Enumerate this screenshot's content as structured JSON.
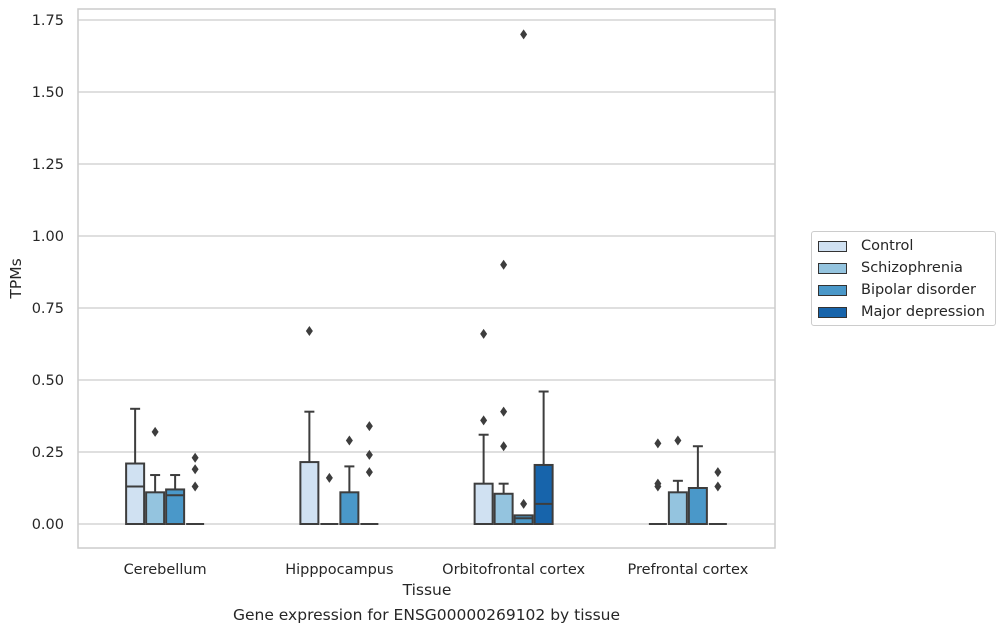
{
  "caption": "Gene expression for ENSG00000269102 by tissue",
  "chart_data": {
    "type": "boxplot",
    "xlabel": "Tissue",
    "ylabel": "TPMs",
    "ylim": [
      -0.08,
      1.79
    ],
    "yticks": [
      "0.00",
      "0.25",
      "0.50",
      "0.75",
      "1.00",
      "1.25",
      "1.50",
      "1.75"
    ],
    "ytick_values": [
      0,
      0.25,
      0.5,
      0.75,
      1.0,
      1.25,
      1.5,
      1.75
    ],
    "grid": "horizontal",
    "legend_position": "right",
    "categories": [
      "Cerebellum",
      "Hipppocampus",
      "Orbitofrontal cortex",
      "Prefrontal cortex"
    ],
    "series": [
      {
        "name": "Control",
        "color": "#d0e1f2",
        "boxes": [
          {
            "q1": 0,
            "median": 0.13,
            "q3": 0.21,
            "whislo": 0,
            "whishi": 0.4,
            "fliers": []
          },
          {
            "q1": 0,
            "median": 0,
            "q3": 0.215,
            "whislo": 0,
            "whishi": 0.39,
            "fliers": [
              0.67
            ]
          },
          {
            "q1": 0,
            "median": 0,
            "q3": 0.14,
            "whislo": 0,
            "whishi": 0.31,
            "fliers": [
              0.36,
              0.66
            ]
          },
          {
            "q1": 0,
            "median": 0,
            "q3": 0,
            "whislo": 0,
            "whishi": 0,
            "fliers": [
              0.13,
              0.14,
              0.28
            ]
          }
        ]
      },
      {
        "name": "Schizophrenia",
        "color": "#94c4df",
        "boxes": [
          {
            "q1": 0,
            "median": 0,
            "q3": 0.11,
            "whislo": 0,
            "whishi": 0.17,
            "fliers": [
              0.32
            ]
          },
          {
            "q1": 0,
            "median": 0,
            "q3": 0,
            "whislo": 0,
            "whishi": 0,
            "fliers": [
              0.16
            ]
          },
          {
            "q1": 0,
            "median": 0,
            "q3": 0.105,
            "whislo": 0,
            "whishi": 0.14,
            "fliers": [
              0.27,
              0.39,
              0.9
            ]
          },
          {
            "q1": 0,
            "median": 0,
            "q3": 0.11,
            "whislo": 0,
            "whishi": 0.15,
            "fliers": [
              0.29
            ]
          }
        ]
      },
      {
        "name": "Bipolar disorder",
        "color": "#4a98c9",
        "boxes": [
          {
            "q1": 0,
            "median": 0.1,
            "q3": 0.12,
            "whislo": 0,
            "whishi": 0.17,
            "fliers": []
          },
          {
            "q1": 0,
            "median": 0,
            "q3": 0.11,
            "whislo": 0,
            "whishi": 0.2,
            "fliers": [
              0.29
            ]
          },
          {
            "q1": 0,
            "median": 0.02,
            "q3": 0.03,
            "whislo": 0,
            "whishi": 0.03,
            "fliers": [
              0.07,
              1.7
            ]
          },
          {
            "q1": 0,
            "median": 0,
            "q3": 0.125,
            "whislo": 0,
            "whishi": 0.27,
            "fliers": []
          }
        ]
      },
      {
        "name": "Major depression",
        "color": "#1764ab",
        "boxes": [
          {
            "q1": 0,
            "median": 0,
            "q3": 0,
            "whislo": 0,
            "whishi": 0,
            "fliers": [
              0.13,
              0.19,
              0.23
            ]
          },
          {
            "q1": 0,
            "median": 0,
            "q3": 0,
            "whislo": 0,
            "whishi": 0,
            "fliers": [
              0.18,
              0.24,
              0.34
            ]
          },
          {
            "q1": 0,
            "median": 0.07,
            "q3": 0.205,
            "whislo": 0,
            "whishi": 0.46,
            "fliers": []
          },
          {
            "q1": 0,
            "median": 0,
            "q3": 0,
            "whislo": 0,
            "whishi": 0,
            "fliers": [
              0.13,
              0.18
            ]
          }
        ]
      }
    ]
  }
}
